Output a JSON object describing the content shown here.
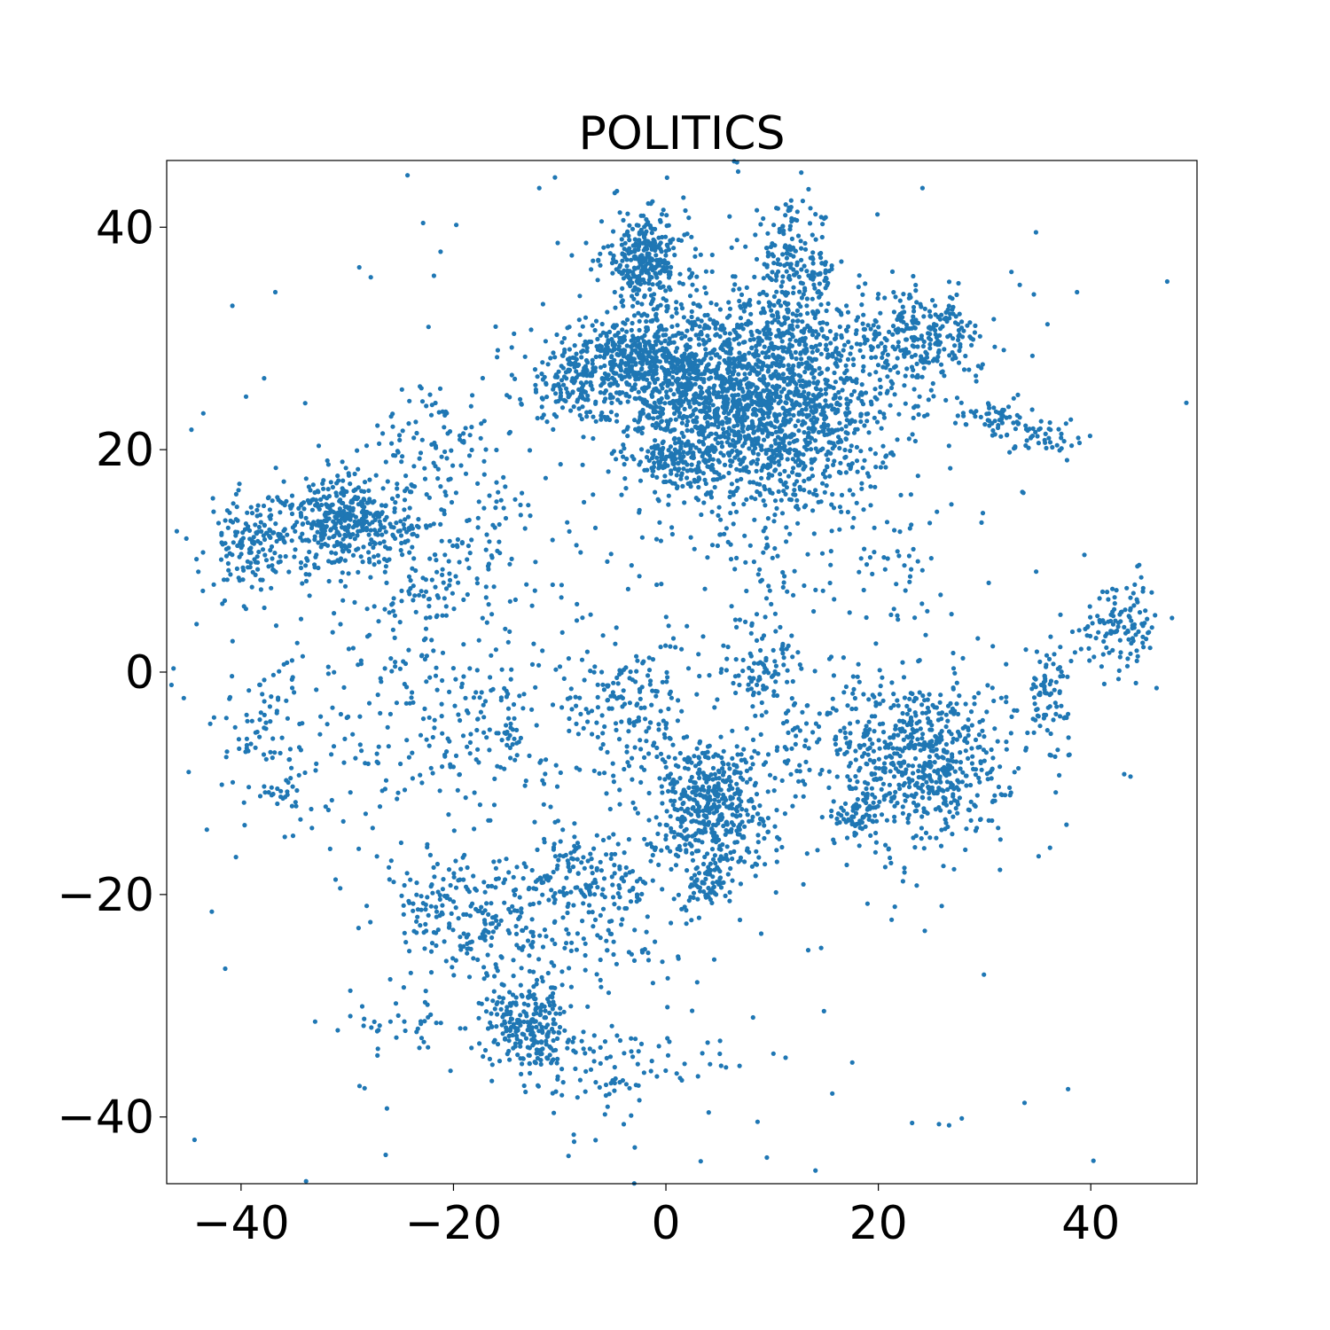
{
  "chart_data": {
    "type": "scatter",
    "title": "POLITICS",
    "xlabel": "",
    "ylabel": "",
    "xlim": [
      -47,
      50
    ],
    "ylim": [
      -46,
      46
    ],
    "xticks": [
      -40,
      -20,
      0,
      20,
      40
    ],
    "xtick_labels": [
      "−40",
      "−20",
      "0",
      "20",
      "40"
    ],
    "yticks": [
      -40,
      -20,
      0,
      20,
      40
    ],
    "ytick_labels": [
      "−40",
      "−20",
      "0",
      "20",
      "40"
    ],
    "grid": false,
    "legend": "none",
    "series": [
      {
        "color": "#1f77b4",
        "clusters": [
          {
            "center": [
              10,
              24
            ],
            "spread": [
              6,
              5
            ],
            "count": 1500
          },
          {
            "center": [
              4,
              26
            ],
            "spread": [
              4,
              4
            ],
            "count": 500
          },
          {
            "center": [
              -3,
              28
            ],
            "spread": [
              4,
              2
            ],
            "count": 400
          },
          {
            "center": [
              -8,
              26
            ],
            "spread": [
              3,
              2
            ],
            "count": 150
          },
          {
            "center": [
              -2,
              37
            ],
            "spread": [
              2,
              2
            ],
            "count": 300
          },
          {
            "center": [
              12,
              36
            ],
            "spread": [
              2,
              3
            ],
            "count": 200
          },
          {
            "center": [
              24,
              30
            ],
            "spread": [
              3,
              2
            ],
            "count": 250
          },
          {
            "center": [
              1,
              19
            ],
            "spread": [
              2,
              1
            ],
            "count": 120
          },
          {
            "center": [
              31,
              23
            ],
            "spread": [
              2,
              1
            ],
            "count": 60
          },
          {
            "center": [
              36,
              21
            ],
            "spread": [
              1.5,
              1
            ],
            "count": 40
          },
          {
            "center": [
              -30,
              13.5
            ],
            "spread": [
              3,
              2
            ],
            "count": 400
          },
          {
            "center": [
              -39,
              11.5
            ],
            "spread": [
              2,
              2
            ],
            "count": 150
          },
          {
            "center": [
              -22,
              20
            ],
            "spread": [
              3,
              3
            ],
            "count": 80
          },
          {
            "center": [
              -18,
              12
            ],
            "spread": [
              3,
              3
            ],
            "count": 80
          },
          {
            "center": [
              -23,
              7
            ],
            "spread": [
              3,
              2
            ],
            "count": 50
          },
          {
            "center": [
              43,
              4.5
            ],
            "spread": [
              2,
              2
            ],
            "count": 120
          },
          {
            "center": [
              36,
              -2
            ],
            "spread": [
              1,
              2
            ],
            "count": 80
          },
          {
            "center": [
              24,
              -8
            ],
            "spread": [
              4,
              4
            ],
            "count": 600
          },
          {
            "center": [
              18,
              -13
            ],
            "spread": [
              1,
              1
            ],
            "count": 60
          },
          {
            "center": [
              4,
              -12
            ],
            "spread": [
              3,
              3
            ],
            "count": 500
          },
          {
            "center": [
              9,
              0
            ],
            "spread": [
              2,
              2
            ],
            "count": 80
          },
          {
            "center": [
              10,
              8
            ],
            "spread": [
              3,
              2
            ],
            "count": 40
          },
          {
            "center": [
              -4,
              -3
            ],
            "spread": [
              3,
              3
            ],
            "count": 150
          },
          {
            "center": [
              -7,
              -18
            ],
            "spread": [
              3,
              2
            ],
            "count": 120
          },
          {
            "center": [
              -5,
              -23
            ],
            "spread": [
              4,
              3
            ],
            "count": 80
          },
          {
            "center": [
              -20,
              -22
            ],
            "spread": [
              3,
              3
            ],
            "count": 150
          },
          {
            "center": [
              -14,
              -22
            ],
            "spread": [
              3,
              3
            ],
            "count": 100
          },
          {
            "center": [
              -13,
              -32
            ],
            "spread": [
              2,
              2
            ],
            "count": 250
          },
          {
            "center": [
              -4,
              -36
            ],
            "spread": [
              4,
              2
            ],
            "count": 80
          },
          {
            "center": [
              4,
              -19
            ],
            "spread": [
              1,
              1
            ],
            "count": 60
          },
          {
            "center": [
              -25,
              -32
            ],
            "spread": [
              3,
              1
            ],
            "count": 30
          },
          {
            "center": [
              -38,
              -5
            ],
            "spread": [
              2,
              2
            ],
            "count": 40
          },
          {
            "center": [
              -36,
              -11
            ],
            "spread": [
              1,
              1
            ],
            "count": 25
          },
          {
            "center": [
              -17,
              -4
            ],
            "spread": [
              3,
              3
            ],
            "count": 100
          },
          {
            "center": [
              15,
              -6
            ],
            "spread": [
              4,
              3
            ],
            "count": 60
          },
          {
            "center": [
              22,
              10
            ],
            "spread": [
              2,
              3
            ],
            "count": 40
          },
          {
            "center": [
              -28,
              -2
            ],
            "spread": [
              8,
              8
            ],
            "count": 200
          },
          {
            "center": [
              0,
              0
            ],
            "spread": [
              25,
              25
            ],
            "count": 500
          }
        ]
      }
    ]
  }
}
